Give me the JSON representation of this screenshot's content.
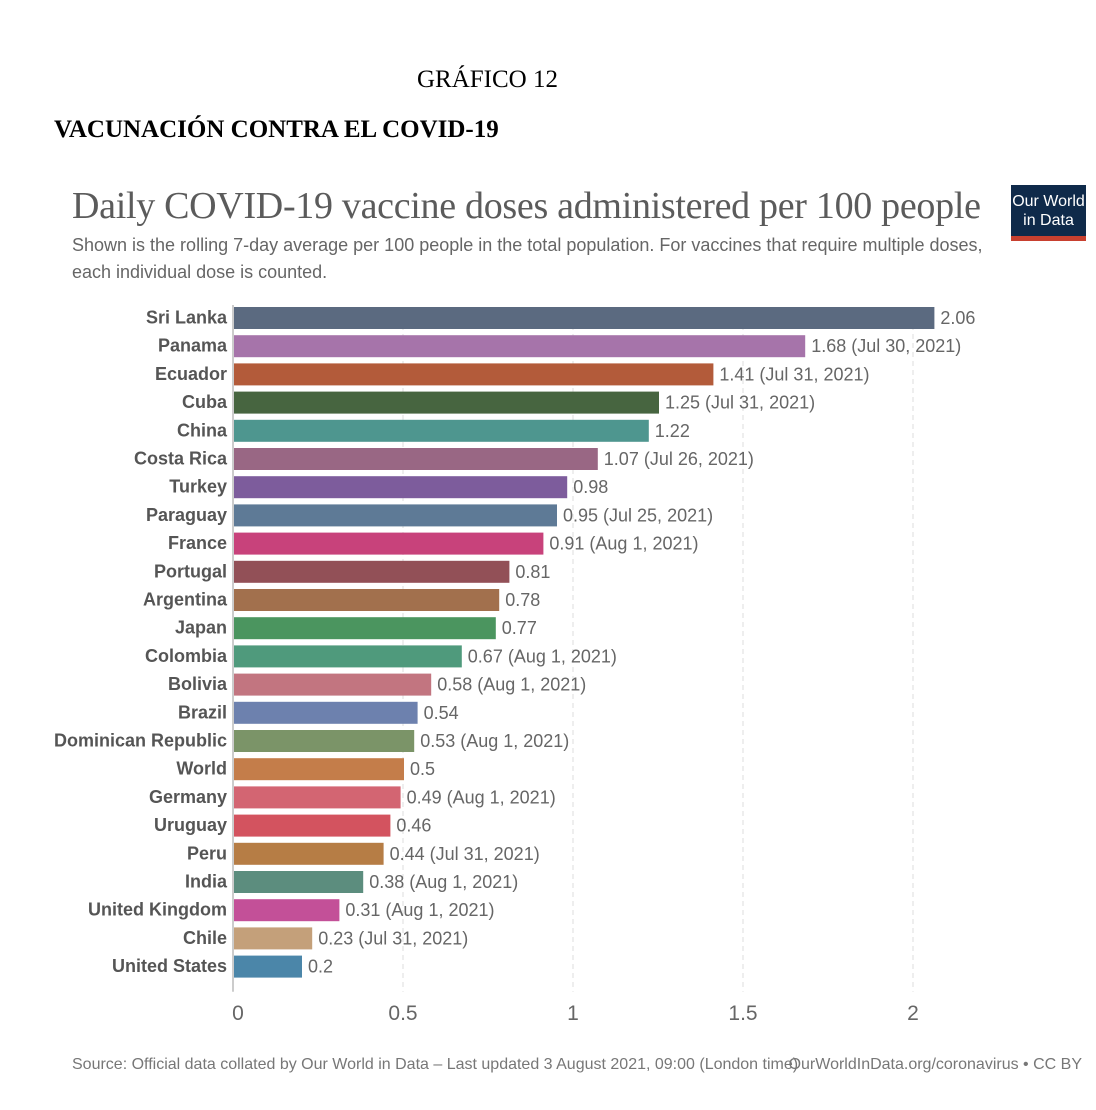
{
  "header": {
    "grafico": "GRÁFICO 12",
    "title": "VACUNACIÓN CONTRA EL COVID-19"
  },
  "logo": {
    "line1": "Our World",
    "line2": "in Data"
  },
  "footer": {
    "source": "Source: Official data collated by Our World in Data – Last updated 3 August 2021, 09:00 (London time)",
    "right": "OurWorldInData.org/coronavirus • CC BY"
  },
  "chart_data": {
    "type": "bar",
    "orientation": "horizontal",
    "title": "Daily COVID-19 vaccine doses administered per 100 people",
    "subtitle": "Shown is the rolling 7-day average per 100 people in the total population. For vaccines that require multiple doses, each individual dose is counted.",
    "xlim": [
      0,
      2.06
    ],
    "xticks": [
      0,
      0.5,
      1,
      1.5,
      2
    ],
    "xtick_labels": [
      "0",
      "0.5",
      "1",
      "1.5",
      "2"
    ],
    "grid": "vertical dashed",
    "bars": [
      {
        "country": "Sri Lanka",
        "value": 2.06,
        "label": "2.06",
        "color": "#5b6a80"
      },
      {
        "country": "Panama",
        "value": 1.68,
        "label": "1.68 (Jul 30, 2021)",
        "color": "#a674aa"
      },
      {
        "country": "Ecuador",
        "value": 1.41,
        "label": "1.41 (Jul 31, 2021)",
        "color": "#b35b3a"
      },
      {
        "country": "Cuba",
        "value": 1.25,
        "label": "1.25 (Jul 31, 2021)",
        "color": "#476540"
      },
      {
        "country": "China",
        "value": 1.22,
        "label": "1.22",
        "color": "#4e968f"
      },
      {
        "country": "Costa Rica",
        "value": 1.07,
        "label": "1.07 (Jul 26, 2021)",
        "color": "#996784"
      },
      {
        "country": "Turkey",
        "value": 0.98,
        "label": "0.98",
        "color": "#7d5c9c"
      },
      {
        "country": "Paraguay",
        "value": 0.95,
        "label": "0.95 (Jul 25, 2021)",
        "color": "#5e7a96"
      },
      {
        "country": "France",
        "value": 0.91,
        "label": "0.91 (Aug 1, 2021)",
        "color": "#c8427b"
      },
      {
        "country": "Portugal",
        "value": 0.81,
        "label": "0.81",
        "color": "#925057"
      },
      {
        "country": "Argentina",
        "value": 0.78,
        "label": "0.78",
        "color": "#a2704d"
      },
      {
        "country": "Japan",
        "value": 0.77,
        "label": "0.77",
        "color": "#4b955f"
      },
      {
        "country": "Colombia",
        "value": 0.67,
        "label": "0.67 (Aug 1, 2021)",
        "color": "#4f9a7c"
      },
      {
        "country": "Bolivia",
        "value": 0.58,
        "label": "0.58 (Aug 1, 2021)",
        "color": "#c27580"
      },
      {
        "country": "Brazil",
        "value": 0.54,
        "label": "0.54",
        "color": "#6d81ae"
      },
      {
        "country": "Dominican Republic",
        "value": 0.53,
        "label": "0.53 (Aug 1, 2021)",
        "color": "#7b9468"
      },
      {
        "country": "World",
        "value": 0.5,
        "label": "0.5",
        "color": "#c47d4a"
      },
      {
        "country": "Germany",
        "value": 0.49,
        "label": "0.49 (Aug 1, 2021)",
        "color": "#d36572"
      },
      {
        "country": "Uruguay",
        "value": 0.46,
        "label": "0.46",
        "color": "#d3535f"
      },
      {
        "country": "Peru",
        "value": 0.44,
        "label": "0.44 (Jul 31, 2021)",
        "color": "#b67d45"
      },
      {
        "country": "India",
        "value": 0.38,
        "label": "0.38 (Aug 1, 2021)",
        "color": "#5c8d7e"
      },
      {
        "country": "United Kingdom",
        "value": 0.31,
        "label": "0.31 (Aug 1, 2021)",
        "color": "#c35098"
      },
      {
        "country": "Chile",
        "value": 0.23,
        "label": "0.23 (Jul 31, 2021)",
        "color": "#c4a07a"
      },
      {
        "country": "United States",
        "value": 0.2,
        "label": "0.2",
        "color": "#4b86a9"
      }
    ]
  }
}
